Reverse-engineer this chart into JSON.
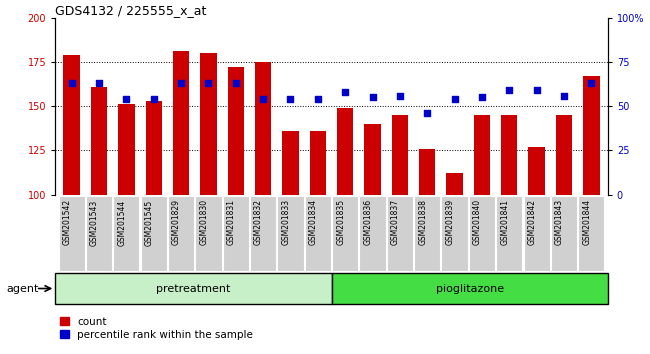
{
  "title": "GDS4132 / 225555_x_at",
  "samples": [
    "GSM201542",
    "GSM201543",
    "GSM201544",
    "GSM201545",
    "GSM201829",
    "GSM201830",
    "GSM201831",
    "GSM201832",
    "GSM201833",
    "GSM201834",
    "GSM201835",
    "GSM201836",
    "GSM201837",
    "GSM201838",
    "GSM201839",
    "GSM201840",
    "GSM201841",
    "GSM201842",
    "GSM201843",
    "GSM201844"
  ],
  "counts": [
    179,
    161,
    151,
    153,
    181,
    180,
    172,
    175,
    136,
    136,
    149,
    140,
    145,
    126,
    112,
    145,
    145,
    127,
    145,
    167
  ],
  "percentiles": [
    63,
    63,
    54,
    54,
    63,
    63,
    63,
    54,
    54,
    54,
    58,
    55,
    56,
    46,
    54,
    55,
    59,
    59,
    56,
    63
  ],
  "pretreatment_count": 10,
  "pioglitazone_count": 10,
  "ylim_left": [
    100,
    200
  ],
  "ylim_right": [
    0,
    100
  ],
  "yticks_left": [
    100,
    125,
    150,
    175,
    200
  ],
  "yticks_right": [
    0,
    25,
    50,
    75,
    100
  ],
  "ytick_labels_right": [
    "0",
    "25",
    "50",
    "75",
    "100%"
  ],
  "bar_color": "#cc0000",
  "dot_color": "#0000cc",
  "pretreatment_color": "#c8f0c8",
  "pioglitazone_color": "#44dd44",
  "legend_count_label": "count",
  "legend_pct_label": "percentile rank within the sample",
  "xlabel_agent": "agent"
}
